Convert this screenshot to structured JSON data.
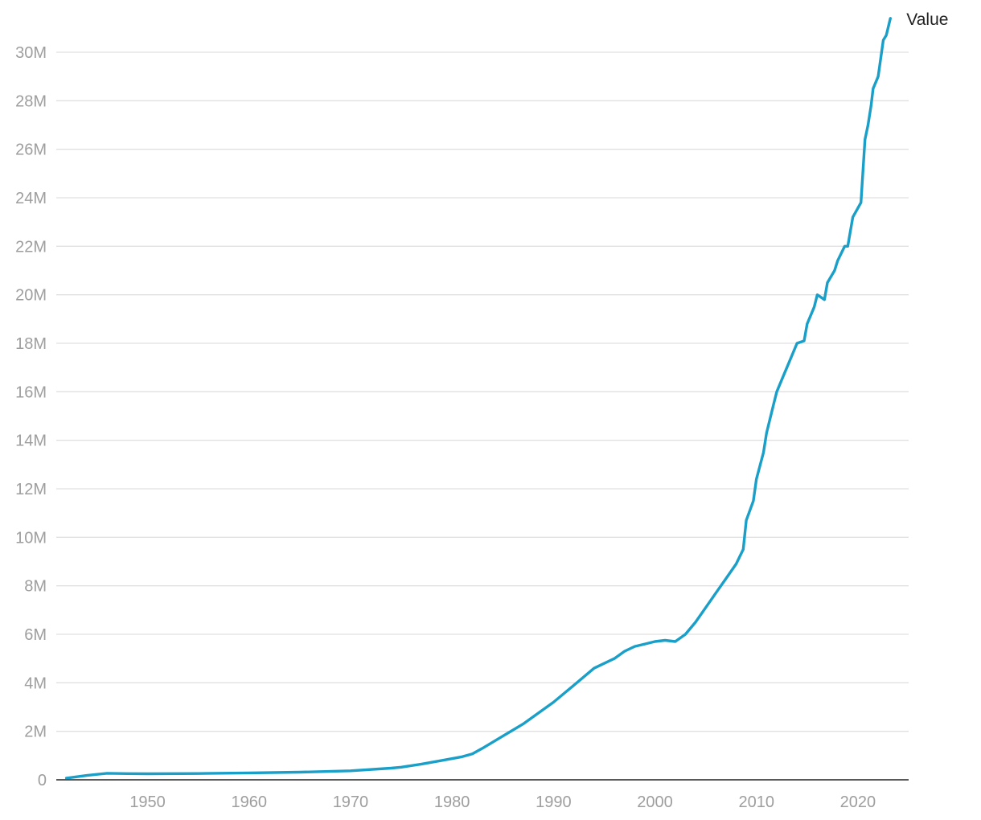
{
  "chart_data": {
    "type": "line",
    "title": "",
    "xlabel": "",
    "ylabel": "",
    "xlim": [
      1941,
      2025
    ],
    "ylim": [
      0,
      30000000
    ],
    "x_ticks": [
      1950,
      1960,
      1970,
      1980,
      1990,
      2000,
      2010,
      2020
    ],
    "x_tick_labels": [
      "1950",
      "1960",
      "1970",
      "1980",
      "1990",
      "2000",
      "2010",
      "2020"
    ],
    "y_ticks": [
      0,
      2000000,
      4000000,
      6000000,
      8000000,
      10000000,
      12000000,
      14000000,
      16000000,
      18000000,
      20000000,
      22000000,
      24000000,
      26000000,
      28000000,
      30000000
    ],
    "y_tick_labels": [
      "0",
      "2M",
      "4M",
      "6M",
      "8M",
      "10M",
      "12M",
      "14M",
      "16M",
      "18M",
      "20M",
      "22M",
      "24M",
      "26M",
      "28M",
      "30M"
    ],
    "grid": true,
    "legend": "end-of-line label",
    "colors": {
      "line": "#1a9fc9",
      "grid": "#e0e0e0",
      "tick_text": "#9e9e9e"
    },
    "series": [
      {
        "name": "Value",
        "x": [
          1942,
          1944,
          1946,
          1948,
          1950,
          1955,
          1960,
          1965,
          1970,
          1974,
          1975,
          1977,
          1979,
          1981,
          1982,
          1983,
          1985,
          1987,
          1990,
          1992,
          1994,
          1996,
          1997,
          1998,
          1999,
          2000,
          2001,
          2002,
          2003,
          2004,
          2005,
          2006,
          2007,
          2008,
          2008.7,
          2009,
          2009.7,
          2010,
          2010.7,
          2011,
          2011.7,
          2012,
          2012.7,
          2013,
          2013.7,
          2014,
          2014.7,
          2015,
          2015.7,
          2016,
          2016.7,
          2017,
          2017.7,
          2018,
          2018.7,
          2019,
          2019.5,
          2020.3,
          2020.7,
          2021,
          2021.3,
          2021.5,
          2022,
          2022.5,
          2022.8,
          2023.2
        ],
        "values": [
          70000,
          180000,
          270000,
          255000,
          250000,
          260000,
          285000,
          315000,
          370000,
          480000,
          520000,
          650000,
          800000,
          950000,
          1070000,
          1300000,
          1800000,
          2300000,
          3200000,
          3900000,
          4600000,
          5000000,
          5300000,
          5500000,
          5600000,
          5700000,
          5750000,
          5700000,
          6000000,
          6500000,
          7100000,
          7700000,
          8300000,
          8900000,
          9500000,
          10700000,
          11500000,
          12400000,
          13500000,
          14300000,
          15500000,
          16000000,
          16700000,
          17000000,
          17700000,
          18000000,
          18100000,
          18800000,
          19500000,
          20000000,
          19800000,
          20500000,
          21000000,
          21400000,
          22000000,
          22000000,
          23200000,
          23800000,
          26400000,
          27000000,
          27800000,
          28500000,
          29000000,
          30500000,
          30700000,
          31400000
        ]
      }
    ]
  }
}
